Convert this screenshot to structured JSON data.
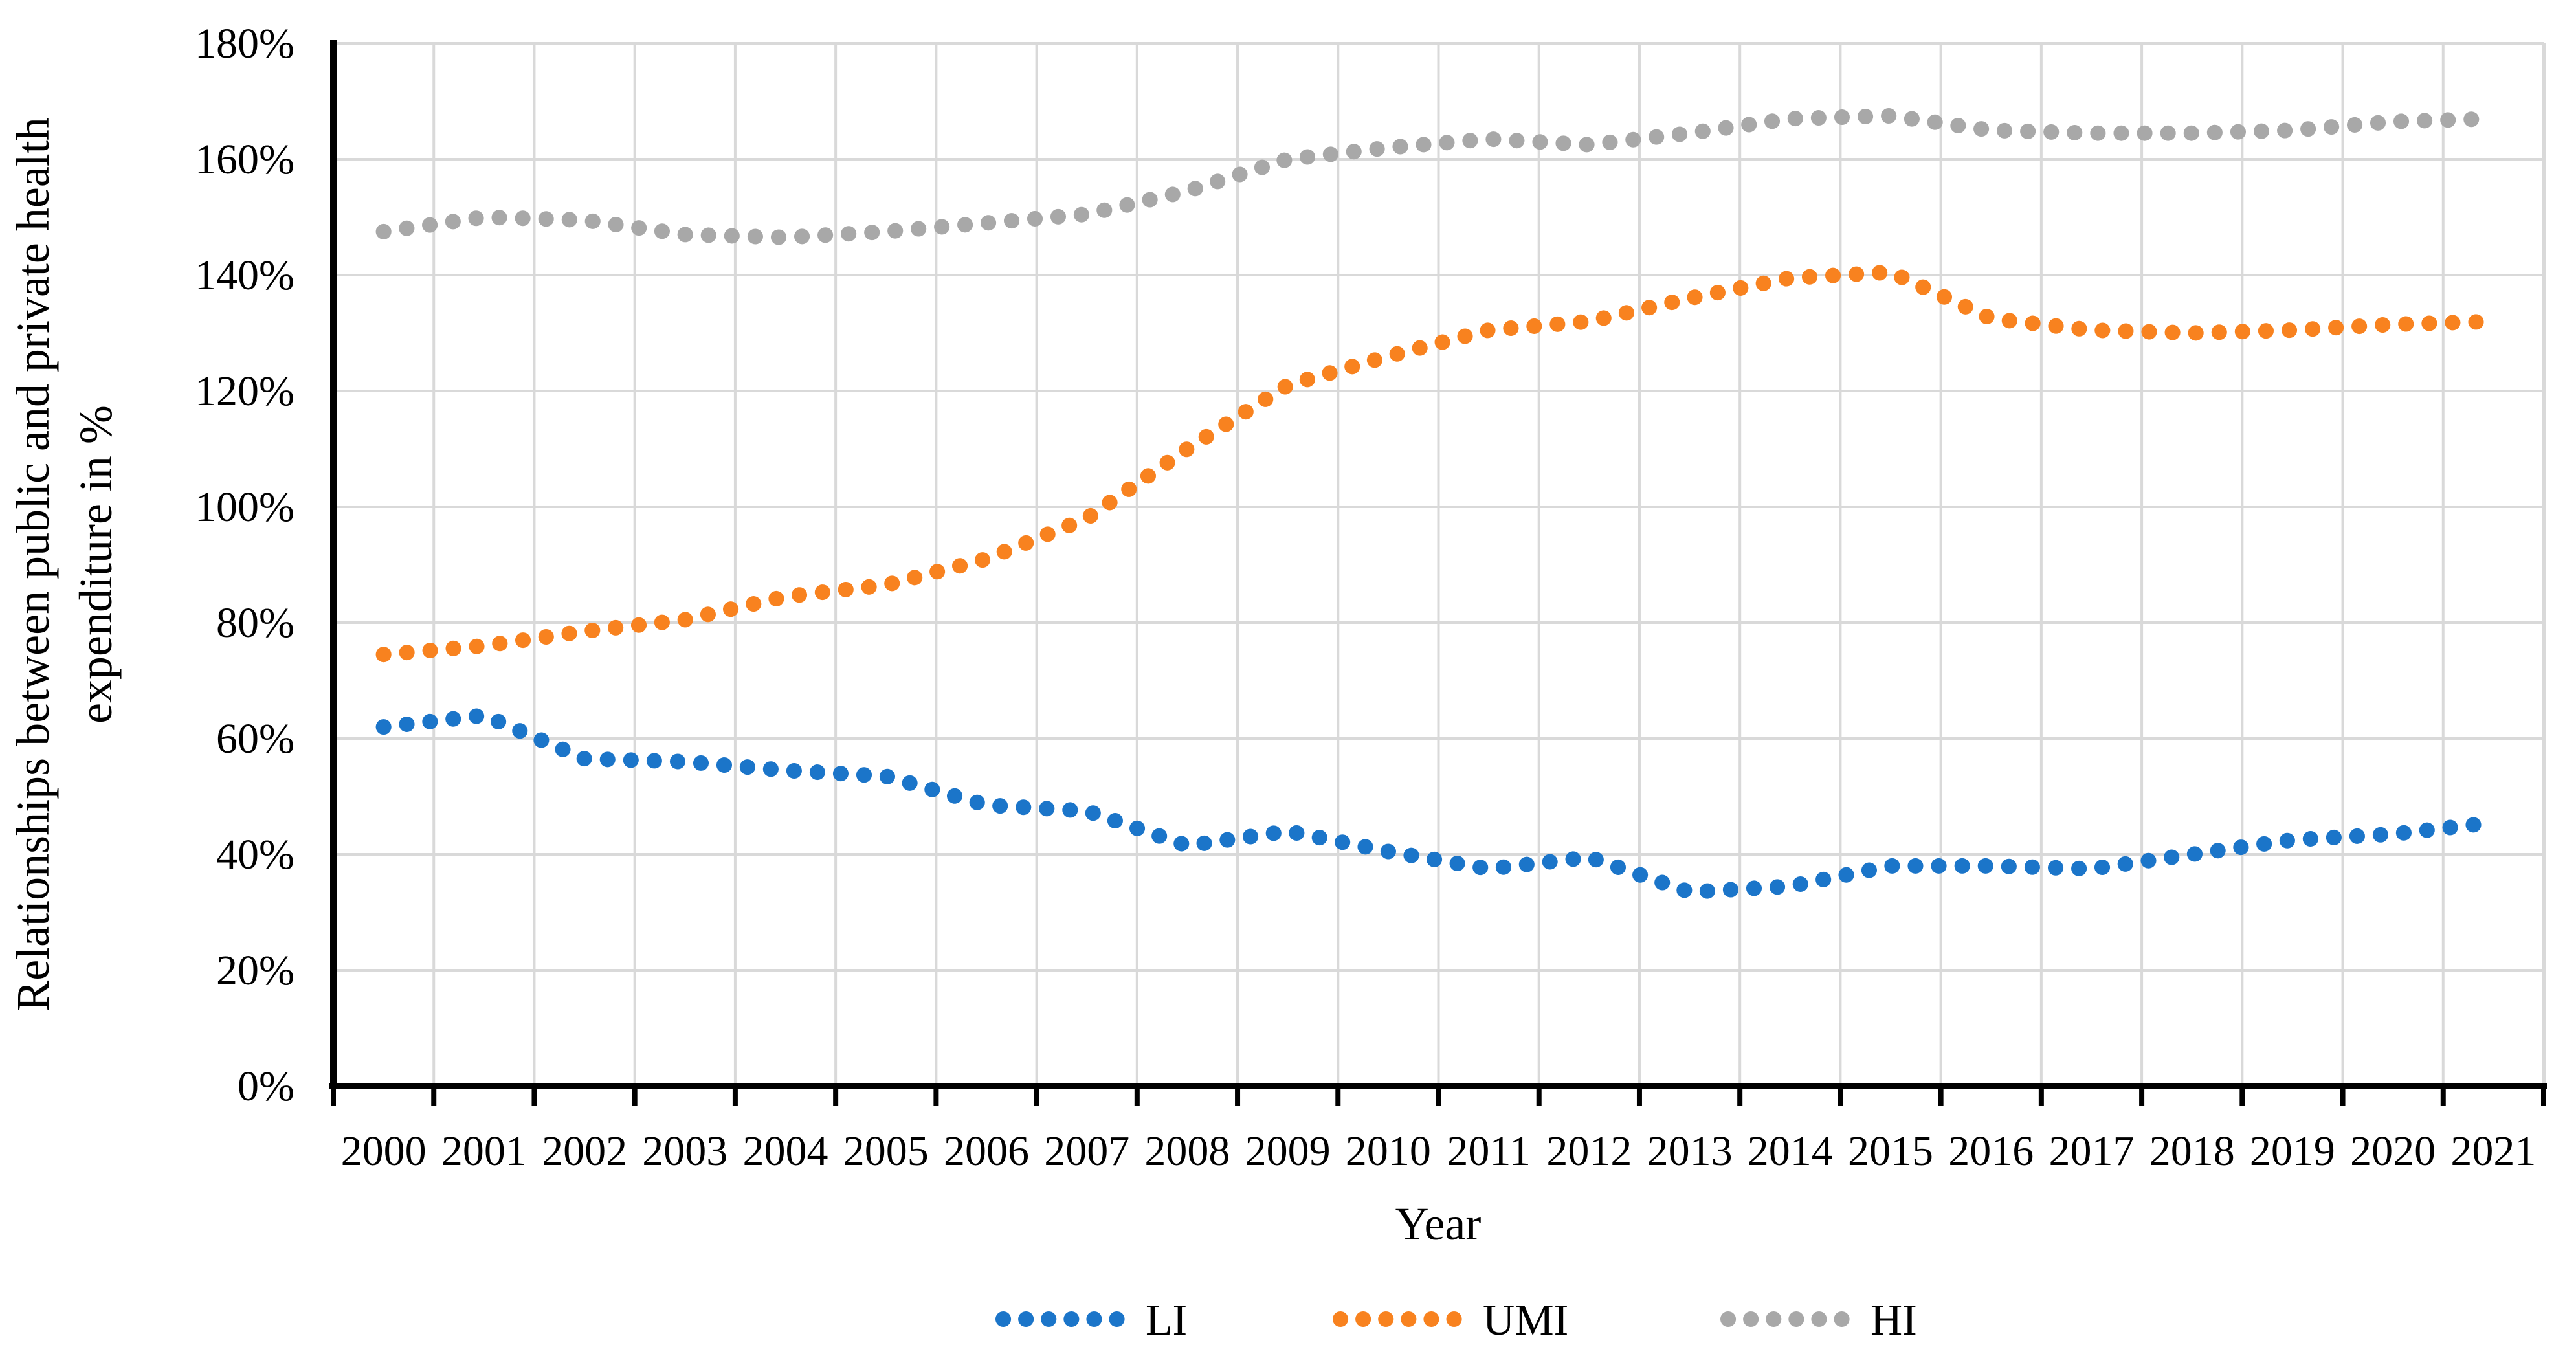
{
  "figure_title": "",
  "chart_data": {
    "type": "line",
    "line_style": "dotted",
    "title": "",
    "xlabel": "Year",
    "ylabel": "Relationships between public and private health expenditure in %",
    "ylabel_lines": [
      "Relationships between public and private health",
      "expenditure in %"
    ],
    "categories": [
      "2000",
      "2001",
      "2002",
      "2003",
      "2004",
      "2005",
      "2006",
      "2007",
      "2008",
      "2009",
      "2010",
      "2011",
      "2012",
      "2013",
      "2014",
      "2015",
      "2016",
      "2017",
      "2018",
      "2019",
      "2020",
      "2021"
    ],
    "series": [
      {
        "name": "LI",
        "color": "#1B75C9",
        "values": [
          62,
          64,
          56.5,
          56,
          54.5,
          53.5,
          48.5,
          47.5,
          41.5,
          44,
          40.5,
          37.5,
          39.5,
          33.5,
          34.5,
          38,
          38,
          37.5,
          40,
          42.5,
          43.5,
          45.5
        ]
      },
      {
        "name": "UMI",
        "color": "#F8821F",
        "values": [
          74.5,
          76,
          78.5,
          80.5,
          84.5,
          86.5,
          91,
          98,
          110,
          121,
          126,
          130.5,
          132,
          136,
          139.5,
          140.5,
          132.5,
          130.5,
          130,
          130.5,
          131.5,
          132
        ]
      },
      {
        "name": "HI",
        "color": "#A8A8A8",
        "values": [
          147.5,
          150,
          149.5,
          147,
          146.5,
          147.5,
          149,
          150.5,
          154.5,
          160,
          162,
          163.5,
          162.5,
          164.5,
          167,
          167.5,
          165,
          164.5,
          164.5,
          165,
          166.5,
          167
        ]
      }
    ],
    "ylim": [
      0,
      180
    ],
    "ytick_step": 20,
    "ytick_labels": [
      "0%",
      "20%",
      "40%",
      "60%",
      "80%",
      "100%",
      "120%",
      "140%",
      "160%",
      "180%"
    ],
    "grid": true,
    "gridline_color": "#D9D9D9",
    "axis_color": "#000000",
    "legend_position": "bottom"
  }
}
